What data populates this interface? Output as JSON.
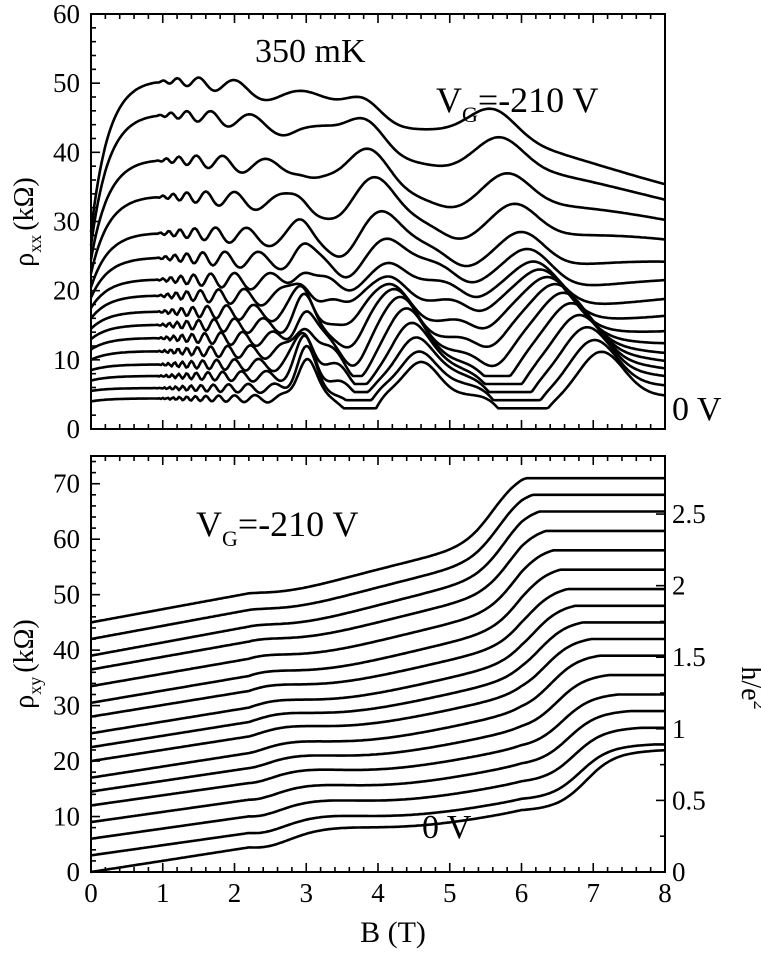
{
  "chart_data": [
    {
      "type": "line",
      "panel": "top",
      "xlim": [
        0,
        8
      ],
      "ylim": [
        0,
        60
      ],
      "y_ticks": [
        "0",
        "10",
        "20",
        "30",
        "40",
        "50",
        "60"
      ],
      "ylabel": {
        "main": "ρ",
        "sub": "xx",
        "unit": "(kΩ)"
      },
      "annotations": {
        "temperature": "350 mK",
        "top_gate": {
          "main": "V",
          "sub": "G",
          "rest": "=-210 V"
        },
        "bottom_gate": "0 V"
      },
      "series": [
        {
          "end_value": 28.5,
          "peak": 55
        },
        {
          "end_value": 26.5,
          "peak": 49.5
        },
        {
          "end_value": 24.5,
          "peak": 42
        },
        {
          "end_value": 22.5,
          "peak": 36
        },
        {
          "end_value": 20.5,
          "peak": 30
        },
        {
          "end_value": 19,
          "peak": 26
        },
        {
          "end_value": 17.5,
          "peak": 22.5
        },
        {
          "end_value": 16,
          "peak": 20
        },
        {
          "end_value": 14.5,
          "peak": 17.5
        },
        {
          "end_value": 13,
          "peak": 15.5
        },
        {
          "end_value": 11.5,
          "peak": 13.5
        },
        {
          "end_value": 10,
          "peak": 11.5
        },
        {
          "end_value": 8.5,
          "peak": 9.5
        },
        {
          "end_value": 7,
          "peak": 7.8
        },
        {
          "end_value": 5.5,
          "peak": 6
        },
        {
          "end_value": 4,
          "peak": 4.5
        }
      ]
    },
    {
      "type": "line",
      "panel": "bottom",
      "xlim": [
        0,
        8
      ],
      "ylim": [
        0,
        75
      ],
      "x_ticks": [
        "0",
        "1",
        "2",
        "3",
        "4",
        "5",
        "6",
        "7",
        "8"
      ],
      "y_ticks": [
        "0",
        "10",
        "20",
        "30",
        "40",
        "50",
        "60",
        "70"
      ],
      "right_ticks": [
        "0",
        "0.5",
        "1",
        "1.5",
        "2",
        "2.5"
      ],
      "xlabel": "B (T)",
      "ylabel": {
        "main": "ρ",
        "sub": "xy",
        "unit": "(kΩ)"
      },
      "right_label": {
        "main": "h/e",
        "sup": "2"
      },
      "annotations": {
        "top_gate": {
          "main": "V",
          "sub": "G",
          "rest": "=-210 V"
        },
        "bottom_gate": "0 V"
      },
      "series": [
        {
          "start": 45,
          "end": 71
        },
        {
          "start": 42,
          "end": 68
        },
        {
          "start": 39,
          "end": 65
        },
        {
          "start": 36.5,
          "end": 61.5
        },
        {
          "start": 33.5,
          "end": 58
        },
        {
          "start": 30.5,
          "end": 54.5
        },
        {
          "start": 28,
          "end": 51
        },
        {
          "start": 25,
          "end": 48
        },
        {
          "start": 22.5,
          "end": 45
        },
        {
          "start": 20,
          "end": 42
        },
        {
          "start": 17,
          "end": 39
        },
        {
          "start": 14.5,
          "end": 35.5
        },
        {
          "start": 12,
          "end": 32
        },
        {
          "start": 9,
          "end": 29
        },
        {
          "start": 6,
          "end": 26
        },
        {
          "start": 3,
          "end": 23
        },
        {
          "start": 0,
          "end": 22
        }
      ]
    }
  ]
}
